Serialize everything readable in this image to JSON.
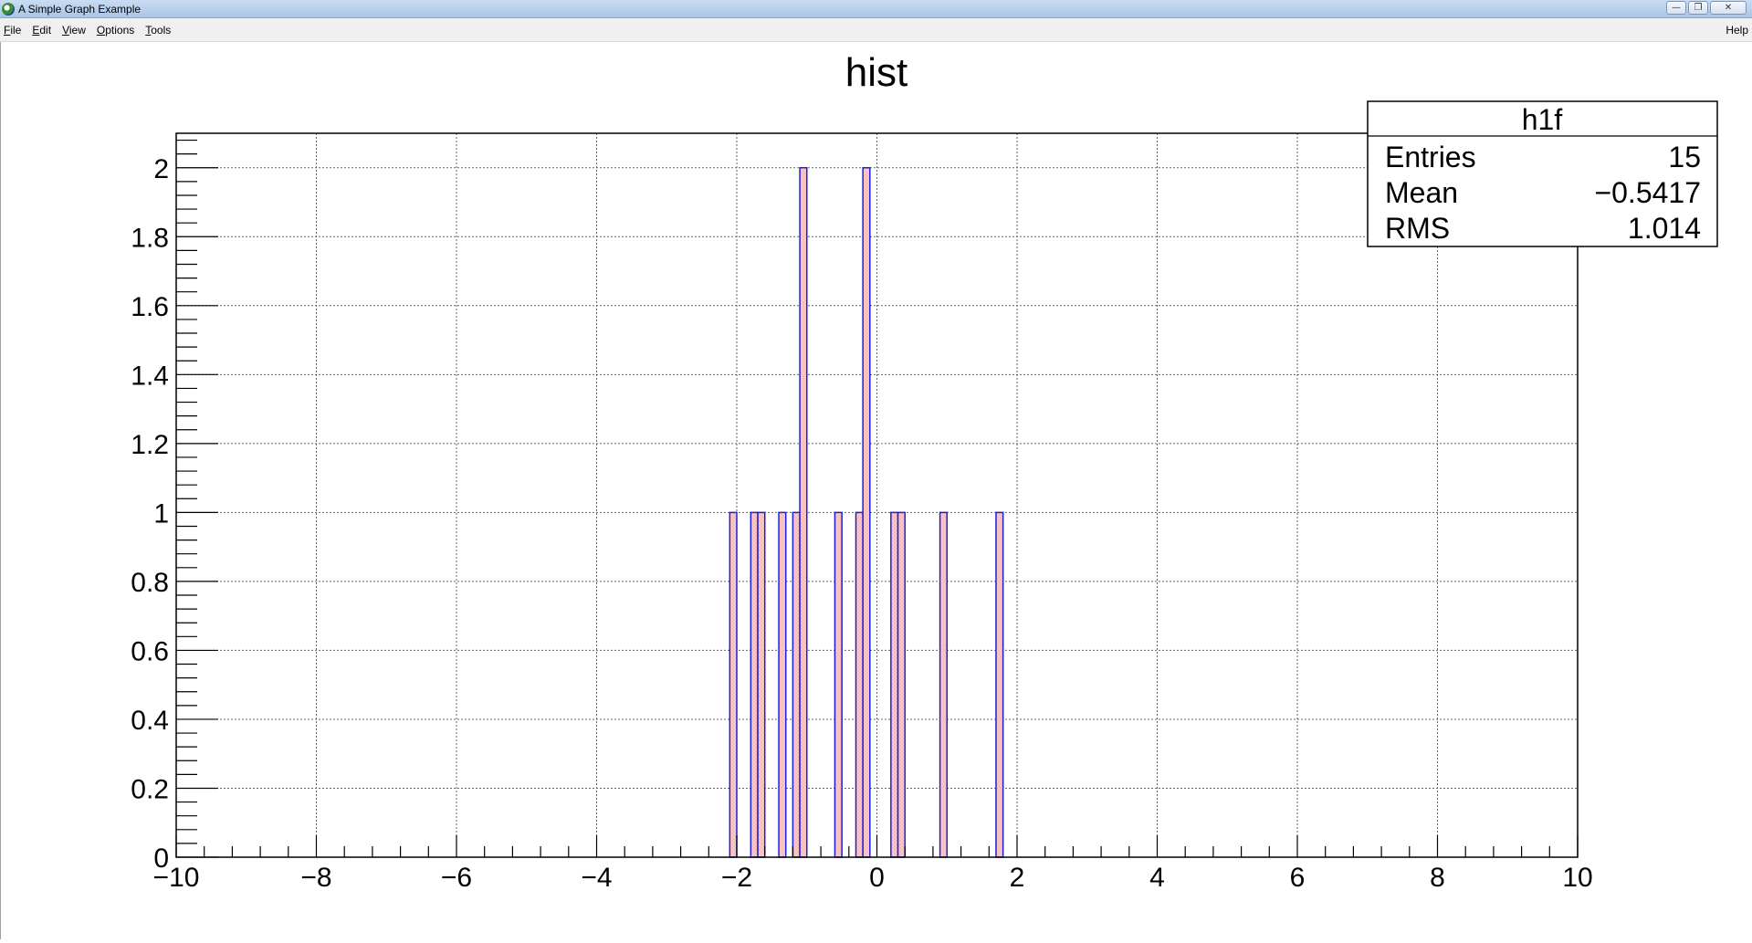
{
  "window": {
    "title": "A Simple Graph Example",
    "icon": "root-app-icon",
    "buttons": [
      "minimize-icon",
      "restore-icon",
      "close-icon"
    ]
  },
  "menu": {
    "items": [
      "File",
      "Edit",
      "View",
      "Options",
      "Tools"
    ],
    "help": "Help"
  },
  "chart_data": {
    "type": "bar",
    "title": "hist",
    "xlabel": "",
    "ylabel": "",
    "xlim": [
      -10,
      10
    ],
    "ylim": [
      0,
      2.1
    ],
    "grid": true,
    "x_ticks": [
      -10,
      -8,
      -6,
      -4,
      -2,
      0,
      2,
      4,
      6,
      8,
      10
    ],
    "x_tick_labels": [
      "−10",
      "−8",
      "−6",
      "−4",
      "−2",
      "0",
      "2",
      "4",
      "6",
      "8",
      "10"
    ],
    "y_ticks": [
      0,
      0.2,
      0.4,
      0.6,
      0.8,
      1,
      1.2,
      1.4,
      1.6,
      1.8,
      2
    ],
    "y_tick_labels": [
      "0",
      "0.2",
      "0.4",
      "0.6",
      "0.8",
      "1",
      "1.2",
      "1.4",
      "1.6",
      "1.8",
      "2"
    ],
    "bin_width": 0.1,
    "bins": [
      {
        "low": -2.1,
        "count": 1
      },
      {
        "low": -1.8,
        "count": 1
      },
      {
        "low": -1.7,
        "count": 1
      },
      {
        "low": -1.4,
        "count": 1
      },
      {
        "low": -1.2,
        "count": 1
      },
      {
        "low": -1.1,
        "count": 2
      },
      {
        "low": -0.6,
        "count": 1
      },
      {
        "low": -0.3,
        "count": 1
      },
      {
        "low": -0.2,
        "count": 2
      },
      {
        "low": 0.2,
        "count": 1
      },
      {
        "low": 0.3,
        "count": 1
      },
      {
        "low": 0.9,
        "count": 1
      },
      {
        "low": 1.7,
        "count": 1
      }
    ],
    "fill_color": "#f7b9b9",
    "line_color": "#1f1fd6",
    "stats_box": {
      "name": "h1f",
      "placement": "top-right",
      "rows": [
        {
          "label": "Entries",
          "value": "15"
        },
        {
          "label": "Mean",
          "value": "−0.5417"
        },
        {
          "label": "RMS",
          "value": "1.014"
        }
      ]
    }
  }
}
